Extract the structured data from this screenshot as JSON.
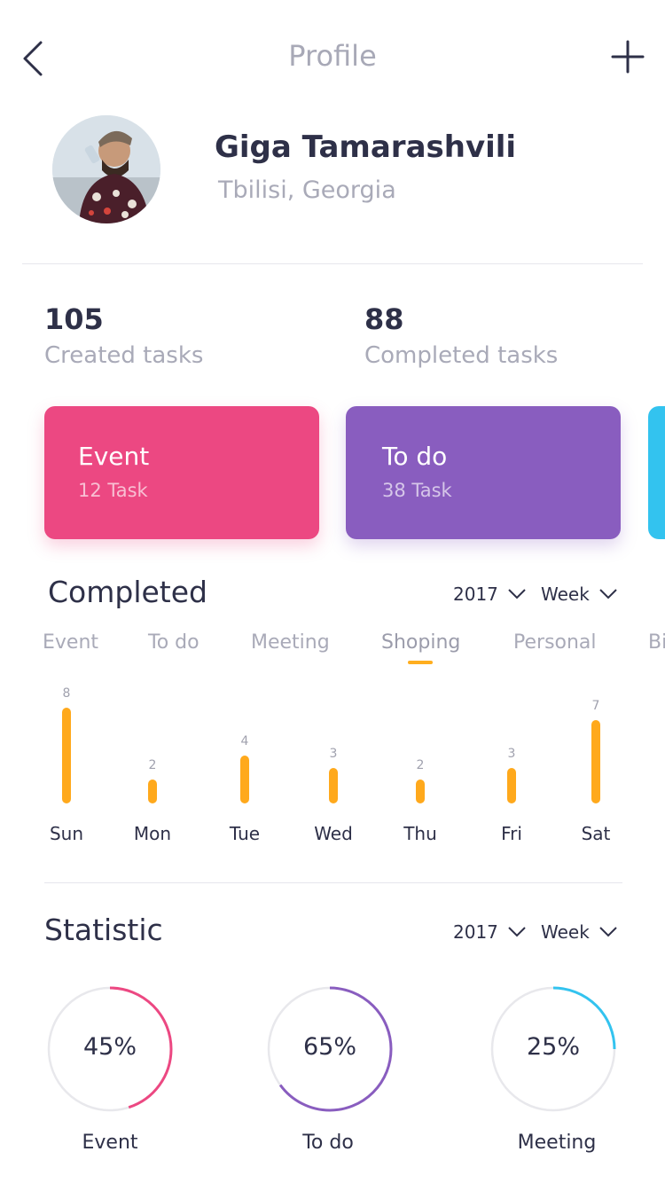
{
  "header": {
    "title": "Profile",
    "back_icon": "chevron-left-icon",
    "add_icon": "plus-icon"
  },
  "profile": {
    "name": "Giga Tamarashvili",
    "location": "Tbilisi, Georgia"
  },
  "stats": {
    "created": {
      "value": "105",
      "label": "Created tasks"
    },
    "completed": {
      "value": "88",
      "label": "Completed tasks"
    }
  },
  "cards": [
    {
      "title": "Event",
      "sub": "12 Task",
      "color": "#ec4882"
    },
    {
      "title": "To do",
      "sub": "38 Task",
      "color": "#895dbf"
    },
    {
      "title": "",
      "sub": "",
      "color": "#33c3ef"
    }
  ],
  "completed_section": {
    "title": "Completed",
    "year": "2017",
    "period": "Week",
    "tabs": [
      "Event",
      "To do",
      "Meeting",
      "Shoping",
      "Personal",
      "Bi"
    ],
    "active_tab": "Shoping",
    "accent": "#ffa91c"
  },
  "chart_data": {
    "type": "bar",
    "categories": [
      "Sun",
      "Mon",
      "Tue",
      "Wed",
      "Thu",
      "Fri",
      "Sat"
    ],
    "values": [
      8,
      2,
      4,
      3,
      2,
      3,
      7
    ],
    "value_labels": [
      "8",
      "2",
      "4",
      "3",
      "2",
      "3",
      "7"
    ],
    "title": "",
    "xlabel": "",
    "ylabel": "",
    "ylim": [
      0,
      8
    ]
  },
  "statistic_section": {
    "title": "Statistic",
    "year": "2017",
    "period": "Week",
    "rings": [
      {
        "label": "Event",
        "percent_text": "45%",
        "fraction": 0.45,
        "color": "#ec4882"
      },
      {
        "label": "To do",
        "percent_text": "65%",
        "fraction": 0.65,
        "color": "#895dbf"
      },
      {
        "label": "Meeting",
        "percent_text": "25%",
        "fraction": 0.25,
        "color": "#33c3ef"
      }
    ]
  }
}
